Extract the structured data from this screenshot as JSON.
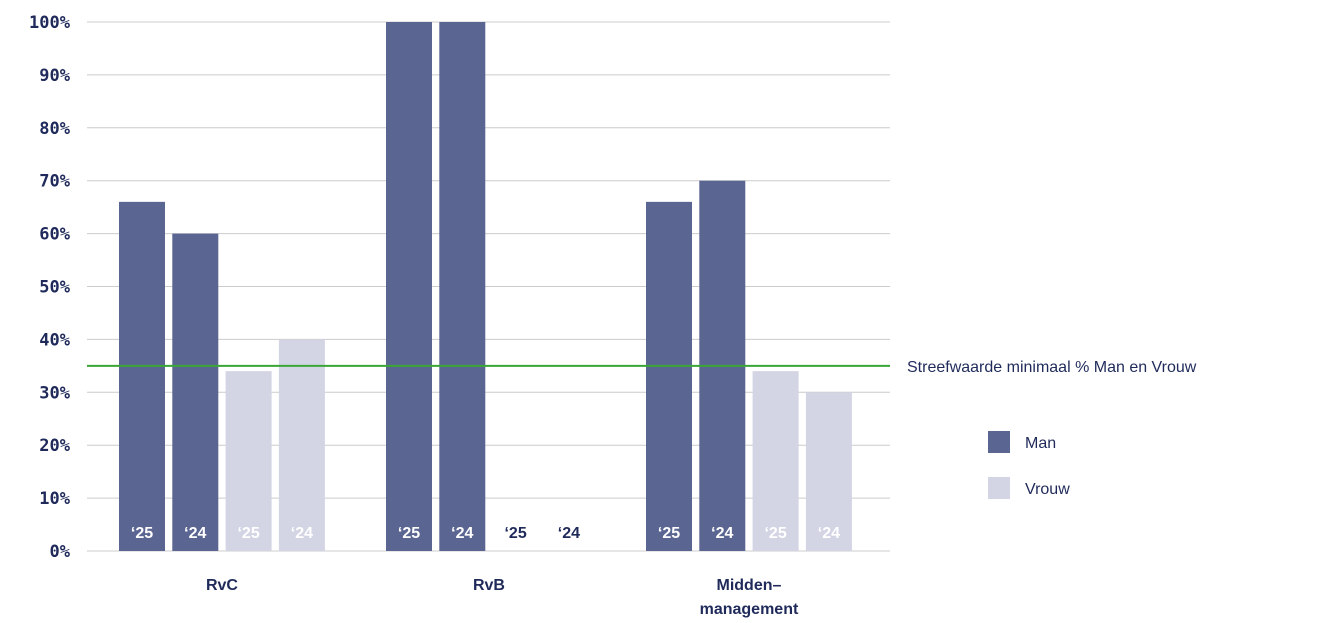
{
  "chart_data": {
    "type": "bar",
    "categories": [
      "RvC",
      "RvB",
      "Midden–\nmanagement"
    ],
    "bar_labels": [
      "‘25",
      "‘24",
      "‘25",
      "‘24"
    ],
    "series": [
      {
        "name": "Man",
        "group": "Man",
        "year": "‘25",
        "values": [
          66,
          100,
          66
        ],
        "color": "#5b6591"
      },
      {
        "name": "Man",
        "group": "Man",
        "year": "‘24",
        "values": [
          60,
          100,
          70
        ],
        "color": "#5b6591"
      },
      {
        "name": "Vrouw",
        "group": "Vrouw",
        "year": "‘25",
        "values": [
          34,
          0,
          34
        ],
        "color": "#d3d4e4"
      },
      {
        "name": "Vrouw",
        "group": "Vrouw",
        "year": "‘24",
        "values": [
          40,
          0,
          30
        ],
        "color": "#d3d4e4"
      }
    ],
    "y_ticks": [
      "0%",
      "10%",
      "20%",
      "30%",
      "40%",
      "50%",
      "60%",
      "70%",
      "80%",
      "90%",
      "100%"
    ],
    "ylim": [
      0,
      100
    ],
    "reference_line": {
      "value": 35,
      "label": "Streefwaarde minimaal % Man en Vrouw",
      "color": "#3aa636"
    },
    "legend": [
      {
        "label": "Man",
        "color": "#5b6591"
      },
      {
        "label": "Vrouw",
        "color": "#d3d4e4"
      }
    ],
    "legend_position": "right",
    "grid": true,
    "colors": {
      "axis_text": "#1f2a5a",
      "grid": "#cccccc"
    }
  }
}
